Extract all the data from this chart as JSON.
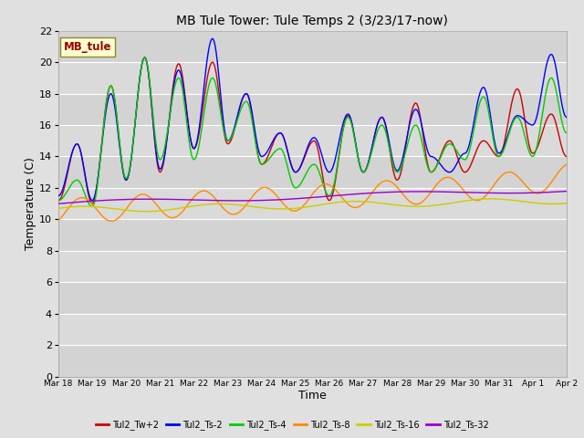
{
  "title": "MB Tule Tower: Tule Temps 2 (3/23/17-now)",
  "xlabel": "Time",
  "ylabel": "Temperature (C)",
  "ylim": [
    0,
    22
  ],
  "yticks": [
    0,
    2,
    4,
    6,
    8,
    10,
    12,
    14,
    16,
    18,
    20,
    22
  ],
  "xlim": [
    0,
    15
  ],
  "xtick_labels": [
    "Mar 18",
    "Mar 19",
    "Mar 20",
    "Mar 21",
    "Mar 22",
    "Mar 23",
    "Mar 24",
    "Mar 25",
    "Mar 26",
    "Mar 27",
    "Mar 28",
    "Mar 29",
    "Mar 30",
    "Mar 31",
    "Apr 1",
    "Apr 2"
  ],
  "xtick_positions": [
    0,
    1,
    2,
    3,
    4,
    5,
    6,
    7,
    8,
    9,
    10,
    11,
    12,
    13,
    14,
    15
  ],
  "legend_labels": [
    "Tul2_Tw+2",
    "Tul2_Ts-2",
    "Tul2_Ts-4",
    "Tul2_Ts-8",
    "Tul2_Ts-16",
    "Tul2_Ts-32"
  ],
  "line_colors": [
    "#cc0000",
    "#0000ff",
    "#00cc00",
    "#ff8800",
    "#cccc00",
    "#9900cc"
  ],
  "background_color": "#e0e0e0",
  "plot_bg_color": "#d8d8d8",
  "grid_color": "#ffffff",
  "label_box_color": "#ffffcc",
  "label_box_text": "MB_tule",
  "label_box_text_color": "#990000",
  "tw2_peaks": [
    14.8,
    18.5,
    20.3,
    19.9,
    20.0,
    18.0,
    15.5,
    15.0,
    16.6,
    16.5,
    17.4,
    15.0,
    15.0,
    18.3,
    16.7,
    20.5,
    18.8,
    16.0
  ],
  "tw2_valleys": [
    11.2,
    11.0,
    12.5,
    13.0,
    14.5,
    14.8,
    13.5,
    13.0,
    11.2,
    13.0,
    12.5,
    13.0,
    13.0,
    14.0,
    14.2,
    14.0,
    16.0,
    16.2
  ],
  "ts2_peaks": [
    14.8,
    18.0,
    20.3,
    19.5,
    21.5,
    18.0,
    15.5,
    15.2,
    16.7,
    16.5,
    17.0,
    13.0,
    18.4,
    16.6,
    20.5,
    18.8,
    16.0
  ],
  "ts2_valleys": [
    11.5,
    11.2,
    12.5,
    13.2,
    14.5,
    15.0,
    14.0,
    13.0,
    13.0,
    13.0,
    13.1,
    14.0,
    14.2,
    14.2,
    16.0,
    16.5
  ],
  "ts4_peaks": [
    12.5,
    18.5,
    20.3,
    19.0,
    19.0,
    17.5,
    14.5,
    13.5,
    16.5,
    16.0,
    16.0,
    14.8,
    17.8,
    16.5,
    19.0,
    18.0,
    18.5
  ],
  "ts4_valleys": [
    11.2,
    10.8,
    12.6,
    13.8,
    13.8,
    15.0,
    13.5,
    12.0,
    11.5,
    13.0,
    13.0,
    13.0,
    13.8,
    14.0,
    14.0,
    15.5
  ],
  "ts8_base": 10.5,
  "ts8_amp": 0.8,
  "ts8_period": 1.8,
  "ts8_trend": 0.12,
  "ts16_base": 10.6,
  "ts16_amp": 0.2,
  "ts16_period": 4.0,
  "ts16_trend": 0.04,
  "ts32_base": 11.0,
  "ts32_amp": 0.15,
  "ts32_period": 8.0,
  "ts32_trend": 0.06
}
